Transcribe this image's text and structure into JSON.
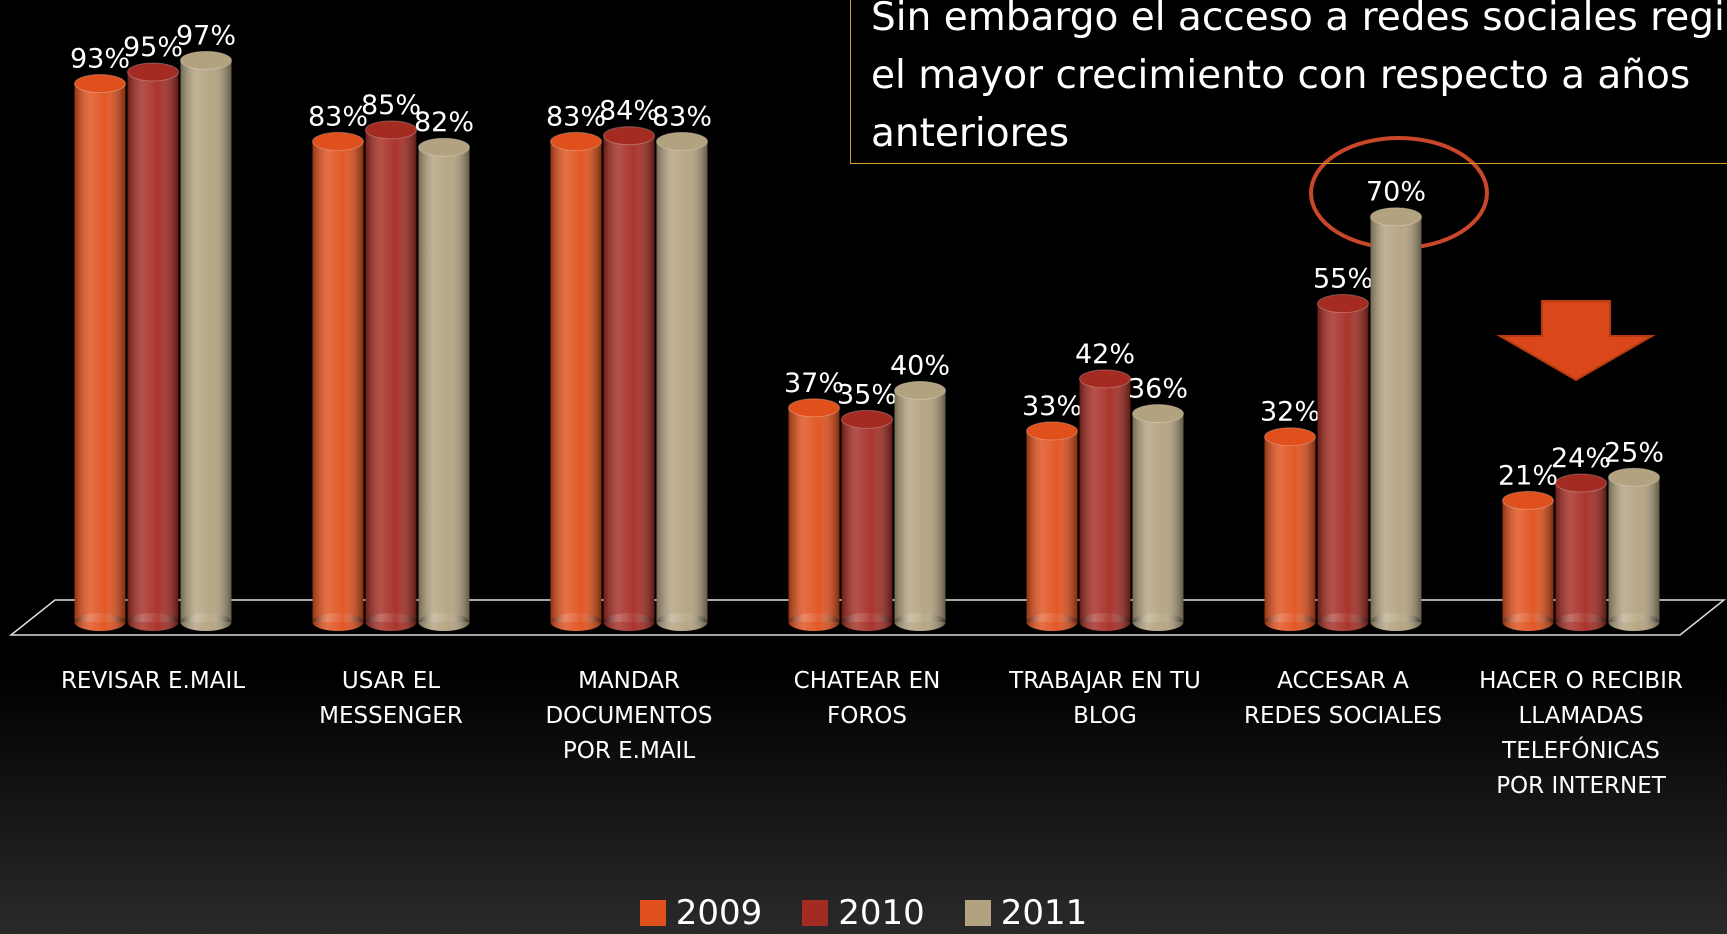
{
  "chart_data": {
    "type": "bar",
    "categories": [
      "REVISAR E.MAIL",
      "USAR EL MESSENGER",
      "MANDAR DOCUMENTOS POR E.MAIL",
      "CHATEAR EN FOROS",
      "TRABAJAR EN TU BLOG",
      "ACCESAR A REDES SOCIALES",
      "HACER O RECIBIR LLAMADAS TELEFÓNICAS POR INTERNET"
    ],
    "series": [
      {
        "name": "2009",
        "color": "#e0501c",
        "values": [
          93,
          83,
          83,
          37,
          33,
          32,
          21
        ],
        "value_labels": [
          "93%",
          "83%",
          "83%",
          "37%",
          "33%",
          "32%",
          "21%"
        ]
      },
      {
        "name": "2010",
        "color": "#a42b22",
        "values": [
          95,
          85,
          84,
          35,
          42,
          55,
          24
        ],
        "value_labels": [
          "95%",
          "85%",
          "84%",
          "35%",
          "42%",
          "55%",
          "24%"
        ]
      },
      {
        "name": "2011",
        "color": "#b3a27f",
        "values": [
          97,
          82,
          83,
          40,
          36,
          70,
          25
        ],
        "value_labels": [
          "97%",
          "82%",
          "83%",
          "40%",
          "36%",
          "70%",
          "25%"
        ]
      }
    ],
    "ylim": [
      0,
      100
    ],
    "annotation": [
      "Sin embargo el acceso a redes sociales registra",
      "el mayor crecimiento con respecto a años",
      "anteriores"
    ]
  }
}
